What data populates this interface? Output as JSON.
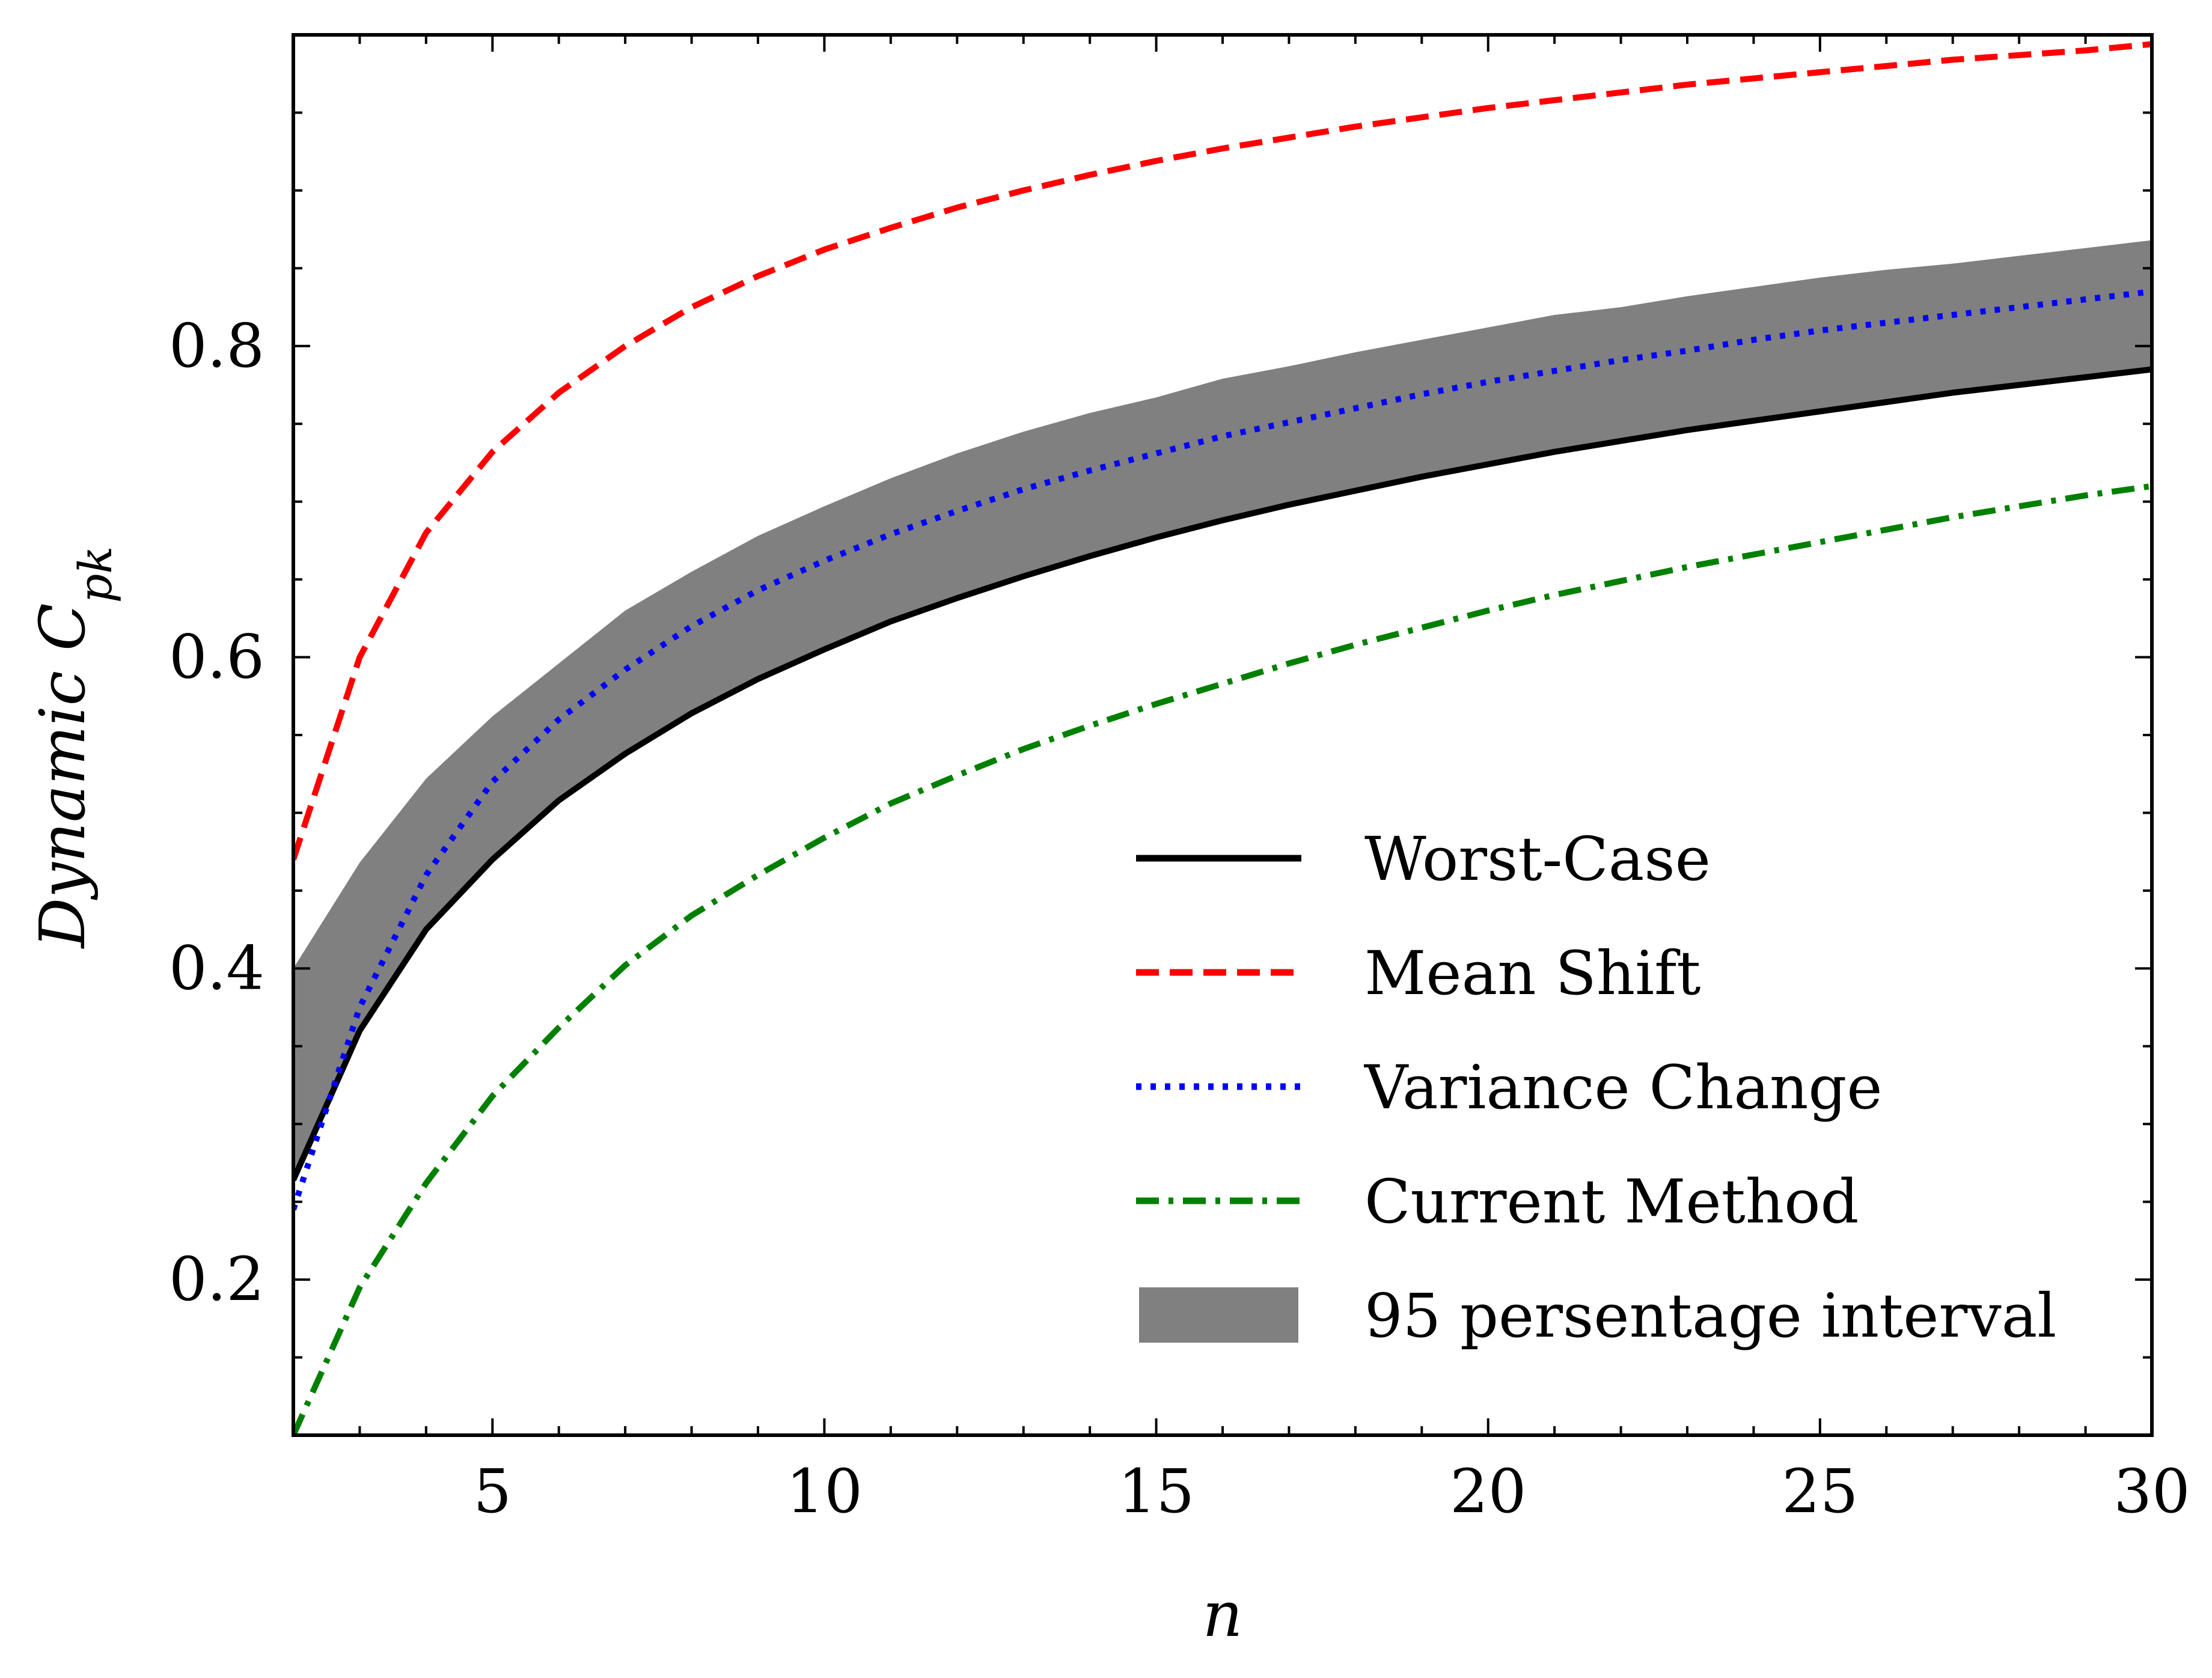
{
  "chart_data": {
    "type": "line",
    "xlabel": "n",
    "ylabel": {
      "main": "Dynamic C",
      "sub": "pk"
    },
    "xlim": [
      2,
      30
    ],
    "ylim": [
      0.1,
      1.0
    ],
    "xticks": [
      5,
      10,
      15,
      20,
      25,
      30
    ],
    "yticks": [
      0.2,
      0.4,
      0.6,
      0.8
    ],
    "x_tick_labels": [
      "5",
      "10",
      "15",
      "20",
      "25",
      "30"
    ],
    "y_tick_labels": [
      "0.2",
      "0.4",
      "0.6",
      "0.8"
    ],
    "grid": false,
    "legend_position": "lower-right",
    "x": [
      2,
      3,
      4,
      5,
      6,
      7,
      8,
      9,
      10,
      11,
      12,
      13,
      14,
      15,
      16,
      17,
      18,
      19,
      20,
      21,
      22,
      23,
      24,
      25,
      26,
      27,
      28,
      29,
      30
    ],
    "series": [
      {
        "name": "Worst-Case",
        "style": "solid",
        "color": "#000000",
        "values": [
          0.264,
          0.36,
          0.425,
          0.47,
          0.508,
          0.538,
          0.564,
          0.586,
          0.605,
          0.623,
          0.638,
          0.652,
          0.665,
          0.677,
          0.688,
          0.698,
          0.707,
          0.716,
          0.724,
          0.732,
          0.739,
          0.746,
          0.752,
          0.758,
          0.764,
          0.77,
          0.775,
          0.78,
          0.785
        ]
      },
      {
        "name": "Mean Shift",
        "style": "dashed",
        "color": "#ff0000",
        "values": [
          0.47,
          0.6,
          0.68,
          0.732,
          0.77,
          0.8,
          0.825,
          0.845,
          0.862,
          0.876,
          0.889,
          0.9,
          0.91,
          0.919,
          0.927,
          0.934,
          0.941,
          0.947,
          0.953,
          0.958,
          0.963,
          0.968,
          0.972,
          0.976,
          0.98,
          0.984,
          0.987,
          0.99,
          0.994
        ]
      },
      {
        "name": "Variance Change",
        "style": "dotted",
        "color": "#0000ff",
        "values": [
          0.245,
          0.375,
          0.46,
          0.52,
          0.56,
          0.592,
          0.62,
          0.643,
          0.662,
          0.679,
          0.694,
          0.708,
          0.72,
          0.731,
          0.742,
          0.751,
          0.76,
          0.769,
          0.777,
          0.784,
          0.791,
          0.797,
          0.804,
          0.81,
          0.815,
          0.82,
          0.825,
          0.83,
          0.835
        ]
      },
      {
        "name": "Current Method",
        "style": "dashdot",
        "color": "#008000",
        "values": [
          0.1,
          0.195,
          0.262,
          0.318,
          0.362,
          0.402,
          0.434,
          0.46,
          0.484,
          0.506,
          0.524,
          0.541,
          0.556,
          0.57,
          0.583,
          0.596,
          0.608,
          0.619,
          0.63,
          0.64,
          0.649,
          0.658,
          0.666,
          0.674,
          0.682,
          0.69,
          0.697,
          0.704,
          0.71
        ]
      }
    ],
    "band": {
      "name": "95 persentage interval",
      "color": "#808080",
      "lower": [
        0.264,
        0.36,
        0.425,
        0.47,
        0.508,
        0.538,
        0.564,
        0.586,
        0.605,
        0.623,
        0.638,
        0.652,
        0.665,
        0.677,
        0.688,
        0.698,
        0.707,
        0.716,
        0.724,
        0.732,
        0.739,
        0.746,
        0.752,
        0.758,
        0.764,
        0.77,
        0.775,
        0.78,
        0.785
      ],
      "upper": [
        0.4,
        0.468,
        0.522,
        0.562,
        0.596,
        0.63,
        0.655,
        0.678,
        0.697,
        0.715,
        0.731,
        0.745,
        0.757,
        0.767,
        0.779,
        0.787,
        0.796,
        0.804,
        0.812,
        0.82,
        0.825,
        0.832,
        0.838,
        0.844,
        0.849,
        0.853,
        0.858,
        0.863,
        0.868
      ]
    }
  }
}
